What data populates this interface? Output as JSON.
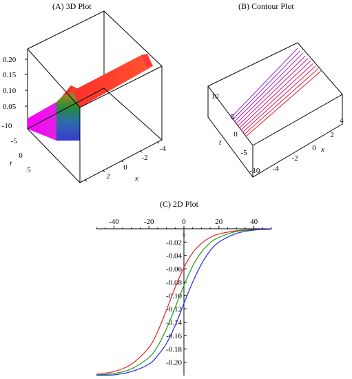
{
  "panels": {
    "a_title": "(A) 3D Plot",
    "b_title": "(B) Contour Plot",
    "c_title": "(C) 2D Plot"
  },
  "chart_data": [
    {
      "panel": "A",
      "type": "surface",
      "title": "(A) 3D Plot",
      "xlabel": "x",
      "ylabel": "t",
      "x_ticks": [
        "-4",
        "-2",
        "0",
        "2"
      ],
      "t_ticks": [
        "-10",
        "-5",
        "0",
        "5"
      ],
      "z_ticks": [
        "0.05",
        "0.10",
        "0.15",
        "0.20"
      ],
      "zlim": [
        0,
        0.2
      ],
      "colors": [
        "#ff00ff",
        "#3f3fcf",
        "#2a8a3a",
        "#9a9a20",
        "#ff3030"
      ]
    },
    {
      "panel": "B",
      "type": "contour",
      "title": "(B) Contour Plot",
      "xlabel": "x",
      "ylabel": "t",
      "x_ticks": [
        "-4",
        "-2",
        "0",
        "2",
        "4"
      ],
      "t_ticks": [
        "-10",
        "-5",
        "0",
        "5",
        "10"
      ],
      "contour_colors": [
        "#8a2be2",
        "#9a22c8",
        "#aa20b4",
        "#b81ea0",
        "#c41c8c",
        "#cc1a78",
        "#d41864",
        "#dc1650",
        "#e4143c",
        "#ec1228"
      ]
    },
    {
      "panel": "C",
      "type": "line",
      "title": "(C) 2D Plot",
      "xlabel": "x",
      "xlim": [
        -50,
        50
      ],
      "ylim": [
        -0.22,
        0
      ],
      "x_ticks": [
        -40,
        -20,
        0,
        20,
        40
      ],
      "y_ticks": [
        -0.02,
        -0.04,
        -0.06,
        -0.08,
        -0.1,
        -0.12,
        -0.14,
        -0.16,
        -0.18,
        -0.2
      ],
      "x": [
        -50,
        -40,
        -30,
        -20,
        -15,
        -10,
        -5,
        0,
        5,
        10,
        15,
        20,
        30,
        40,
        50
      ],
      "series": [
        {
          "color": "#e8201e",
          "values": [
            -0.218,
            -0.214,
            -0.203,
            -0.178,
            -0.154,
            -0.122,
            -0.088,
            -0.058,
            -0.036,
            -0.022,
            -0.013,
            -0.008,
            -0.003,
            -0.001,
            -0.0003
          ]
        },
        {
          "color": "#1a9a1a",
          "values": [
            -0.219,
            -0.217,
            -0.21,
            -0.193,
            -0.176,
            -0.15,
            -0.118,
            -0.085,
            -0.056,
            -0.035,
            -0.021,
            -0.013,
            -0.004,
            -0.0015,
            -0.0005
          ]
        },
        {
          "color": "#1c2ae6",
          "values": [
            -0.2195,
            -0.219,
            -0.214,
            -0.203,
            -0.19,
            -0.172,
            -0.145,
            -0.112,
            -0.08,
            -0.053,
            -0.033,
            -0.02,
            -0.007,
            -0.002,
            -0.0007
          ]
        }
      ]
    }
  ]
}
